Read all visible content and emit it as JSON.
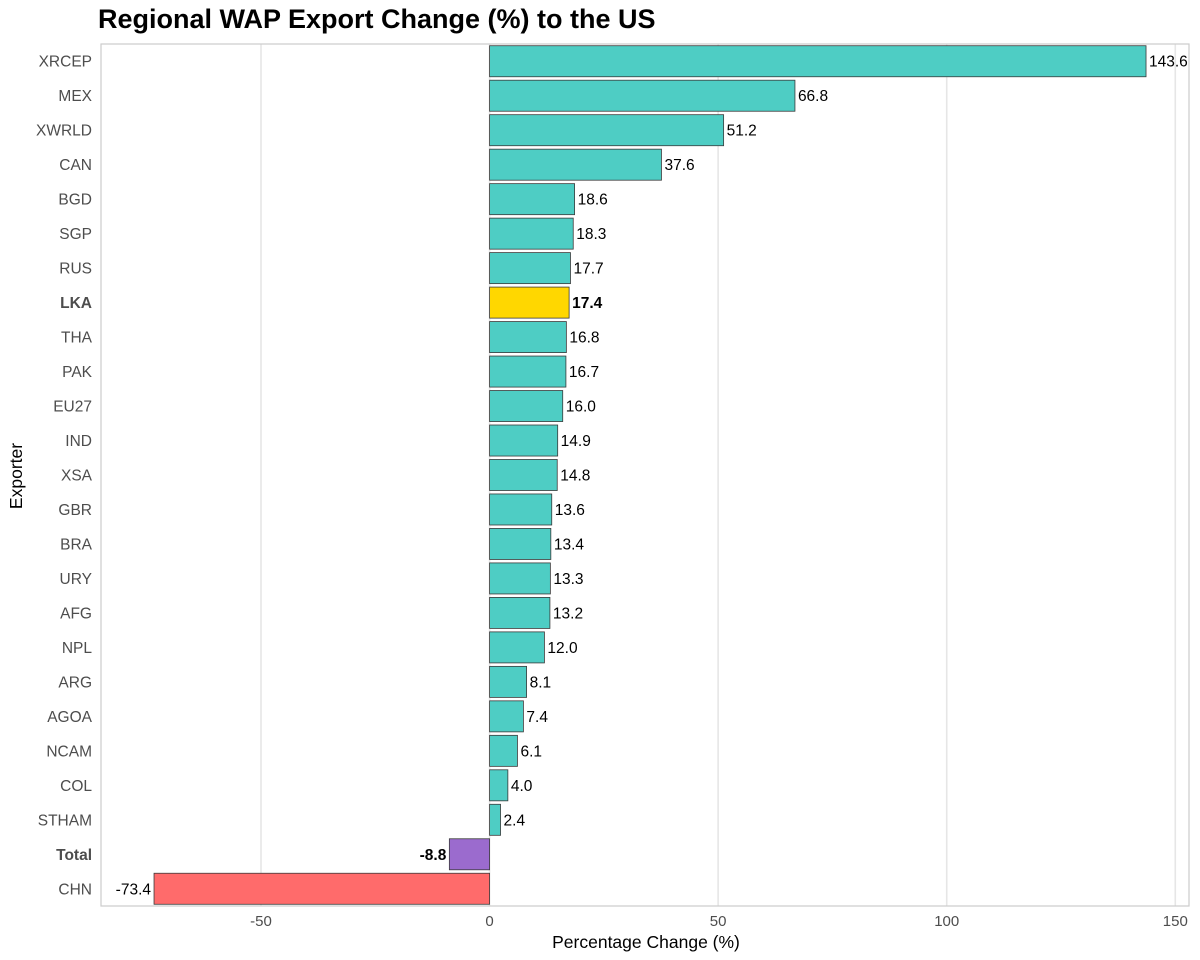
{
  "chart_data": {
    "type": "bar",
    "orientation": "horizontal",
    "title": "Regional WAP Export Change (%) to the US",
    "xlabel": "Percentage Change (%)",
    "ylabel": "Exporter",
    "xlim": [
      -85,
      153
    ],
    "xticks": [
      -50,
      0,
      50,
      100,
      150
    ],
    "grid": "vertical-major",
    "legend": "none",
    "categories": [
      "XRCEP",
      "MEX",
      "XWRLD",
      "CAN",
      "BGD",
      "SGP",
      "RUS",
      "LKA",
      "THA",
      "PAK",
      "EU27",
      "IND",
      "XSA",
      "GBR",
      "BRA",
      "URY",
      "AFG",
      "NPL",
      "ARG",
      "AGOA",
      "NCAM",
      "COL",
      "STHAM",
      "Total",
      "CHN"
    ],
    "values": [
      143.6,
      66.8,
      51.2,
      37.6,
      18.6,
      18.3,
      17.7,
      17.4,
      16.8,
      16.7,
      16.0,
      14.9,
      14.8,
      13.6,
      13.4,
      13.3,
      13.2,
      12.0,
      8.1,
      7.4,
      6.1,
      4.0,
      2.4,
      -8.8,
      -73.4
    ],
    "labels": [
      "143.6",
      "66.8",
      "51.2",
      "37.6",
      "18.6",
      "18.3",
      "17.7",
      "17.4",
      "16.8",
      "16.7",
      "16.0",
      "14.9",
      "14.8",
      "13.6",
      "13.4",
      "13.3",
      "13.2",
      "12.0",
      "8.1",
      "7.4",
      "6.1",
      "4.0",
      "2.4",
      "-8.8",
      "-73.4"
    ],
    "highlight": [
      "LKA",
      "Total"
    ],
    "colors": {
      "default": "#4ECDC4",
      "LKA": "#FFD700",
      "Total": "#9B6BCE",
      "CHN": "#FF6B6B",
      "bar_outline": "#3a3a3a",
      "grid": "#e6e6e6",
      "panel_border": "#cccccc"
    }
  }
}
